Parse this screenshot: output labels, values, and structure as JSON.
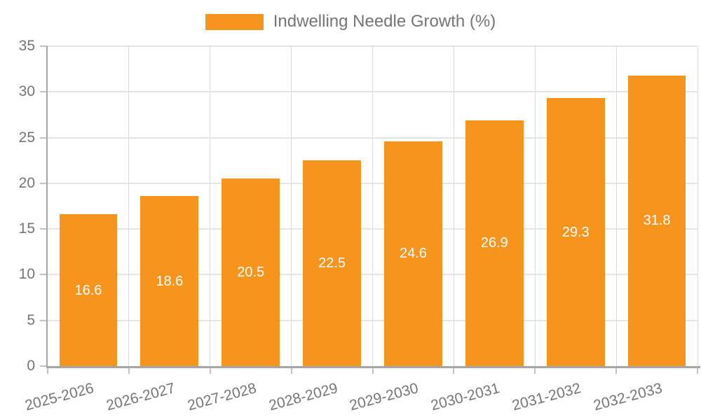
{
  "chart_data": {
    "type": "bar",
    "title": "",
    "series_label": "Indwelling Needle Growth (%)",
    "categories": [
      "2025-2026",
      "2026-2027",
      "2027-2028",
      "2028-2029",
      "2029-2030",
      "2030-2031",
      "2031-2032",
      "2032-2033"
    ],
    "values": [
      16.6,
      18.6,
      20.5,
      22.5,
      24.6,
      26.9,
      29.3,
      31.8
    ],
    "ylim": [
      0,
      35
    ],
    "ytick_step": 5,
    "yticks": [
      0,
      5,
      10,
      15,
      20,
      25,
      30,
      35
    ],
    "grid": "horizontal-and-vertical",
    "legend_position": "top-center",
    "bar_value_labels_visible": true,
    "x_label_rotation_deg": -15
  },
  "colors": {
    "bar": "#F7941E",
    "bar_label_text": "#FFFFFF",
    "axis_text": "#757575",
    "axis_line": "#A6A6A6",
    "grid_horizontal": "#E5E5E5",
    "grid_vertical": "#DADADA",
    "tick_mark": "#C2C2C2",
    "background": "#FFFFFF"
  }
}
